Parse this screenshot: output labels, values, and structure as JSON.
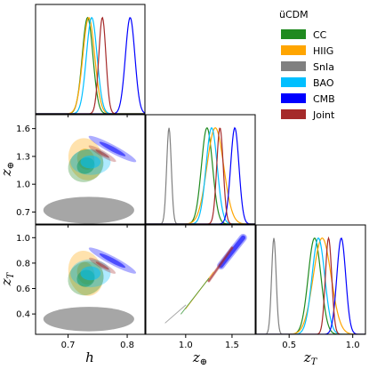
{
  "chart_data": {
    "type": "corner",
    "colors": {
      "CC": "#1f8a1f",
      "HIIG": "#ffa500",
      "SnIa": "#808080",
      "BAO": "#00bfff",
      "CMB": "#0000ff",
      "Joint": "#a52a2a"
    },
    "legend": {
      "title": "üCDM",
      "entries": [
        "CC",
        "HIIG",
        "SnIa",
        "BAO",
        "CMB",
        "Joint"
      ]
    },
    "parameters": [
      {
        "key": "h",
        "label": "h",
        "label_sub": "",
        "range": [
          0.645,
          0.83
        ],
        "ticks": [
          0.7,
          0.8
        ],
        "tick_labels": [
          "0.7",
          "0.8"
        ]
      },
      {
        "key": "zeq",
        "label": "z",
        "label_sub": "⊕",
        "range": [
          0.57,
          1.75
        ],
        "ticks": [
          0.7,
          1.0,
          1.3,
          1.6
        ],
        "tick_labels": [
          "0.7",
          "1.0",
          "1.3",
          "1.6"
        ],
        "x_ticks": [
          1.0,
          1.5
        ],
        "x_tick_labels": [
          "1.0",
          "1.5"
        ]
      },
      {
        "key": "zT",
        "label": "z",
        "label_sub": "T",
        "range": [
          0.24,
          1.1
        ],
        "ticks": [
          0.4,
          0.6,
          0.8,
          1.0
        ],
        "tick_labels": [
          "0.4",
          "0.6",
          "0.8",
          "1.0"
        ],
        "x_ticks": [
          0.5,
          1.0
        ],
        "x_tick_labels": [
          "0.5",
          "1.0"
        ]
      }
    ],
    "marginals": {
      "h": [
        {
          "series": "CC",
          "mean": 0.733,
          "sd": 0.009
        },
        {
          "series": "HIIG",
          "mean": 0.735,
          "sd": 0.01
        },
        {
          "series": "BAO",
          "mean": 0.74,
          "sd": 0.009
        },
        {
          "series": "CMB",
          "mean": 0.805,
          "sd": 0.008
        },
        {
          "series": "Joint",
          "mean": 0.758,
          "sd": 0.006
        }
      ],
      "zeq": [
        {
          "series": "SnIa",
          "mean": 0.82,
          "sd": 0.025
        },
        {
          "series": "CC",
          "mean": 1.23,
          "sd": 0.06
        },
        {
          "series": "HIIG",
          "mean": 1.32,
          "sd": 0.09
        },
        {
          "series": "BAO",
          "mean": 1.28,
          "sd": 0.06
        },
        {
          "series": "CMB",
          "mean": 1.53,
          "sd": 0.045
        },
        {
          "series": "Joint",
          "mean": 1.37,
          "sd": 0.035
        }
      ],
      "zT": [
        {
          "series": "SnIa",
          "mean": 0.38,
          "sd": 0.018
        },
        {
          "series": "CC",
          "mean": 0.7,
          "sd": 0.05
        },
        {
          "series": "HIIG",
          "mean": 0.76,
          "sd": 0.07
        },
        {
          "series": "BAO",
          "mean": 0.73,
          "sd": 0.05
        },
        {
          "series": "CMB",
          "mean": 0.91,
          "sd": 0.035
        },
        {
          "series": "Joint",
          "mean": 0.81,
          "sd": 0.025
        }
      ]
    },
    "contours": [
      {
        "x": "h",
        "y": "zeq",
        "ellipses": [
          {
            "series": "SnIa",
            "cx": 0.735,
            "cy": 0.72,
            "sx": 0.032,
            "sy": 0.06,
            "angle": 0,
            "sigma2": 2.4,
            "sigma1": 1.0
          },
          {
            "series": "HIIG",
            "cx": 0.73,
            "cy": 1.27,
            "sx": 0.029,
            "sy": 0.23,
            "angle": -15,
            "sigma2": 1.0,
            "sigma1": 0.5
          },
          {
            "series": "CC",
            "cx": 0.73,
            "cy": 1.2,
            "sx": 0.031,
            "sy": 0.17,
            "angle": -30,
            "sigma2": 1.0,
            "sigma1": 0.5
          },
          {
            "series": "BAO",
            "cx": 0.738,
            "cy": 1.24,
            "sx": 0.034,
            "sy": 0.14,
            "angle": 0,
            "sigma2": 1.0,
            "sigma1": 0.5
          },
          {
            "series": "CMB",
            "cx": 0.775,
            "cy": 1.38,
            "sx": 0.007,
            "sy": 0.29,
            "angle": -62,
            "sigma2": 1.0,
            "sigma1": 0.55
          },
          {
            "series": "Joint",
            "cx": 0.758,
            "cy": 1.33,
            "sx": 0.005,
            "sy": 0.17,
            "angle": -60,
            "sigma2": 1.0,
            "sigma1": 0.5
          }
        ]
      },
      {
        "x": "h",
        "y": "zT",
        "ellipses": [
          {
            "series": "SnIa",
            "cx": 0.735,
            "cy": 0.36,
            "sx": 0.032,
            "sy": 0.04,
            "angle": 0,
            "sigma2": 2.4,
            "sigma1": 1.0
          },
          {
            "series": "HIIG",
            "cx": 0.73,
            "cy": 0.72,
            "sx": 0.029,
            "sy": 0.18,
            "angle": -15,
            "sigma2": 1.0,
            "sigma1": 0.5
          },
          {
            "series": "CC",
            "cx": 0.73,
            "cy": 0.68,
            "sx": 0.031,
            "sy": 0.13,
            "angle": -30,
            "sigma2": 1.0,
            "sigma1": 0.5
          },
          {
            "series": "BAO",
            "cx": 0.738,
            "cy": 0.72,
            "sx": 0.034,
            "sy": 0.11,
            "angle": 0,
            "sigma2": 1.0,
            "sigma1": 0.5
          },
          {
            "series": "CMB",
            "cx": 0.775,
            "cy": 0.82,
            "sx": 0.007,
            "sy": 0.21,
            "angle": -62,
            "sigma2": 1.0,
            "sigma1": 0.55
          },
          {
            "series": "Joint",
            "cx": 0.758,
            "cy": 0.78,
            "sx": 0.005,
            "sy": 0.12,
            "angle": -60,
            "sigma2": 1.0,
            "sigma1": 0.5
          }
        ]
      },
      {
        "x": "zeq",
        "y": "zT",
        "lines": [
          {
            "series": "CMB",
            "x0": 1.38,
            "y0": 0.78,
            "x1": 1.62,
            "y1": 1.0,
            "width_sigma2": 0.03,
            "width_sigma1": 0.018
          },
          {
            "series": "Joint",
            "x0": 1.25,
            "y0": 0.66,
            "x1": 1.5,
            "y1": 0.92,
            "width_sigma2": 0.012,
            "width_sigma1": 0.007
          },
          {
            "series": "HIIG",
            "x0": 1.0,
            "y0": 0.44,
            "x1": 1.3,
            "y1": 0.73,
            "width_sigma2": 0.003,
            "width_sigma1": 0.002
          },
          {
            "series": "CC",
            "x0": 0.95,
            "y0": 0.4,
            "x1": 1.25,
            "y1": 0.68,
            "width_sigma2": 0.003,
            "width_sigma1": 0.002
          },
          {
            "series": "SnIa",
            "x0": 0.78,
            "y0": 0.33,
            "x1": 1.0,
            "y1": 0.47,
            "width_sigma2": 0.002,
            "width_sigma1": 0.001
          }
        ]
      }
    ]
  }
}
